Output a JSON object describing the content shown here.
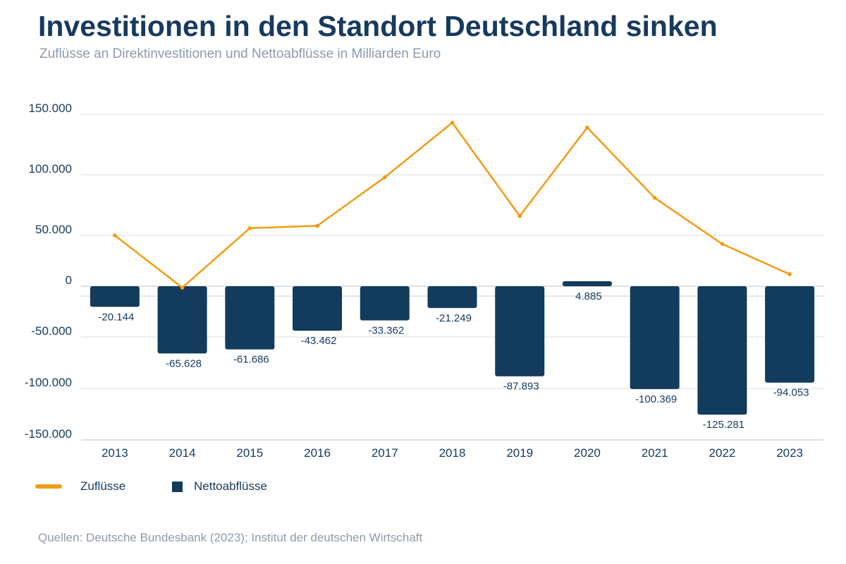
{
  "title": "Investitionen in den Standort Deutschland sinken",
  "subtitle": "Zuflüsse an Direktinvestitionen und Nettoabflüsse in Milliarden Euro",
  "source": "Quellen: Deutsche Bundesbank (2023); Institut der deutschen Wirtschaft",
  "colors": {
    "line": "#f39c12",
    "bar": "#133b5c",
    "axis_text": "#173a5e",
    "grid": "#d9dde3"
  },
  "chart_data": {
    "type": "bar+line",
    "categories": [
      "2013",
      "2014",
      "2015",
      "2016",
      "2017",
      "2018",
      "2019",
      "2020",
      "2021",
      "2022",
      "2023"
    ],
    "y_ticks": [
      "150.000",
      "100.000",
      "50.000",
      "0",
      "-50.000",
      "-100.000",
      "-150.000"
    ],
    "series": [
      {
        "name": "Zuflüsse",
        "type": "line",
        "values": [
          50000,
          7000,
          56000,
          58000,
          98000,
          143000,
          66000,
          139000,
          81000,
          43000,
          18000
        ]
      },
      {
        "name": "Nettoabflüsse",
        "type": "bar",
        "values": [
          -20144,
          -65628,
          -61686,
          -43462,
          -33362,
          -21249,
          -87893,
          4885,
          -100369,
          -125281,
          -94053
        ],
        "labels": [
          "-20.144",
          "-65.628",
          "-61.686",
          "-43.462",
          "-33.362",
          "-21.249",
          "-87.893",
          "4.885",
          "-100.369",
          "-125.281",
          "-94.053"
        ]
      }
    ],
    "legend_position": "bottom-left",
    "grid": true
  }
}
